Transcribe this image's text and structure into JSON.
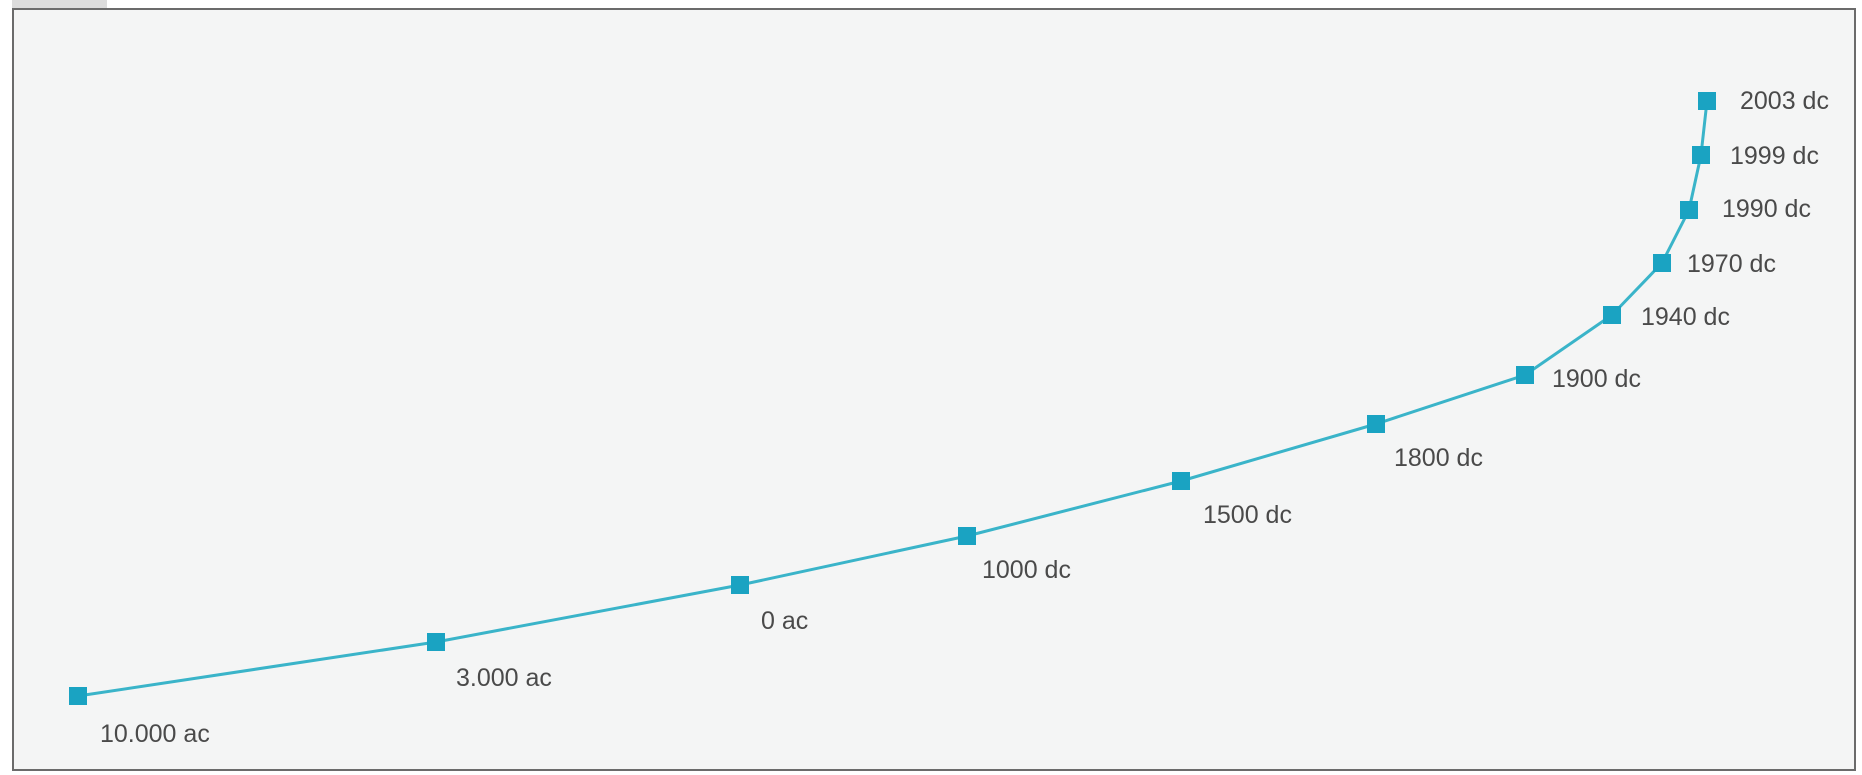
{
  "chart_data": {
    "type": "line",
    "title": "",
    "xlabel": "",
    "ylabel": "",
    "grid": false,
    "legend": "none",
    "line_color": "#3ab4c9",
    "marker_color": "#1aa3c2",
    "label_color": "#4a4a4a",
    "background": "#f4f5f5",
    "series": [
      {
        "points": [
          {
            "label": "10.000 ac",
            "x": 0,
            "y": 0
          },
          {
            "label": "3.000 ac",
            "x": 1,
            "y": 1
          },
          {
            "label": "0 ac",
            "x": 2,
            "y": 2
          },
          {
            "label": "1000 dc",
            "x": 3,
            "y": 3
          },
          {
            "label": "1500 dc",
            "x": 4,
            "y": 4
          },
          {
            "label": "1800 dc",
            "x": 5,
            "y": 5
          },
          {
            "label": "1900 dc",
            "x": 6,
            "y": 6
          },
          {
            "label": "1940 dc",
            "x": 7,
            "y": 7
          },
          {
            "label": "1970 dc",
            "x": 8,
            "y": 8
          },
          {
            "label": "1990 dc",
            "x": 9,
            "y": 9
          },
          {
            "label": "1999 dc",
            "x": 10,
            "y": 10
          },
          {
            "label": "2003 dc",
            "x": 11,
            "y": 11
          }
        ]
      }
    ]
  }
}
